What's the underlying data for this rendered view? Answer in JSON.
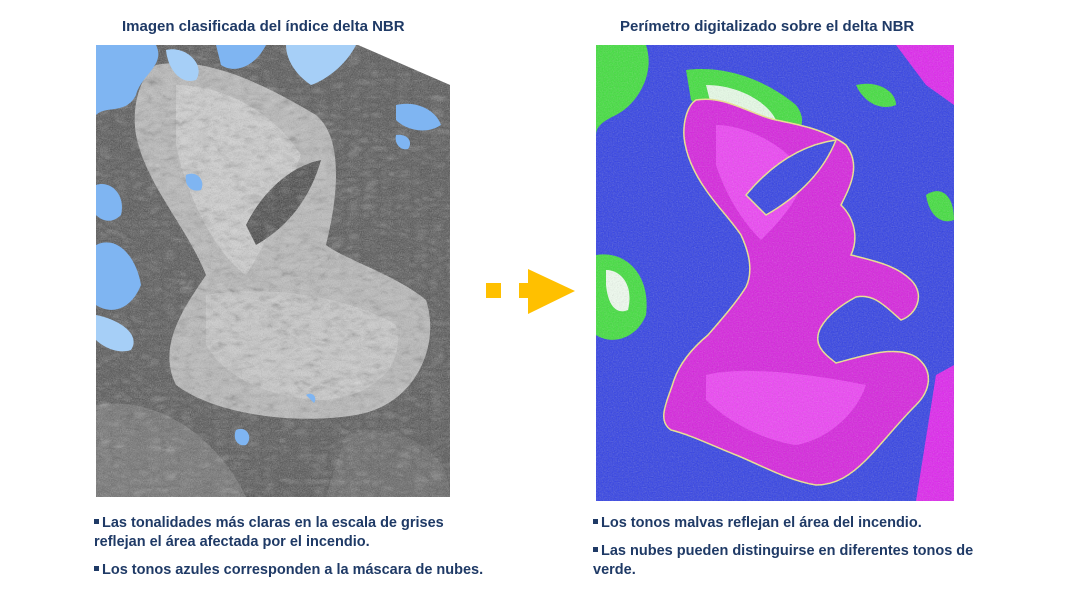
{
  "left_panel": {
    "title": "Imagen clasificada del índice delta NBR",
    "bullets": [
      "Las tonalidades más claras en la escala de grises  reflejan el área afectada por el incendio.",
      "Los tonos  azules corresponden  a la máscara de nubes."
    ]
  },
  "right_panel": {
    "title": "Perímetro digitalizado sobre el delta NBR",
    "bullets": [
      "Los tonos  malvas  reflejan el área del incendio.",
      "Las nubes  pueden distinguirse  en diferentes tonos  de verde."
    ]
  },
  "colors": {
    "title_text": "#1f3a66",
    "arrow": "#ffc000",
    "cloud_mask_blue": "#7fb5f2",
    "burn_magenta": "#e020f0",
    "base_blue": "#2f3ee6",
    "cloud_green": "#3ee03a",
    "perimeter_yellow": "#f0e68c"
  },
  "icons": {
    "arrow": "dashed-right-arrow-icon"
  }
}
